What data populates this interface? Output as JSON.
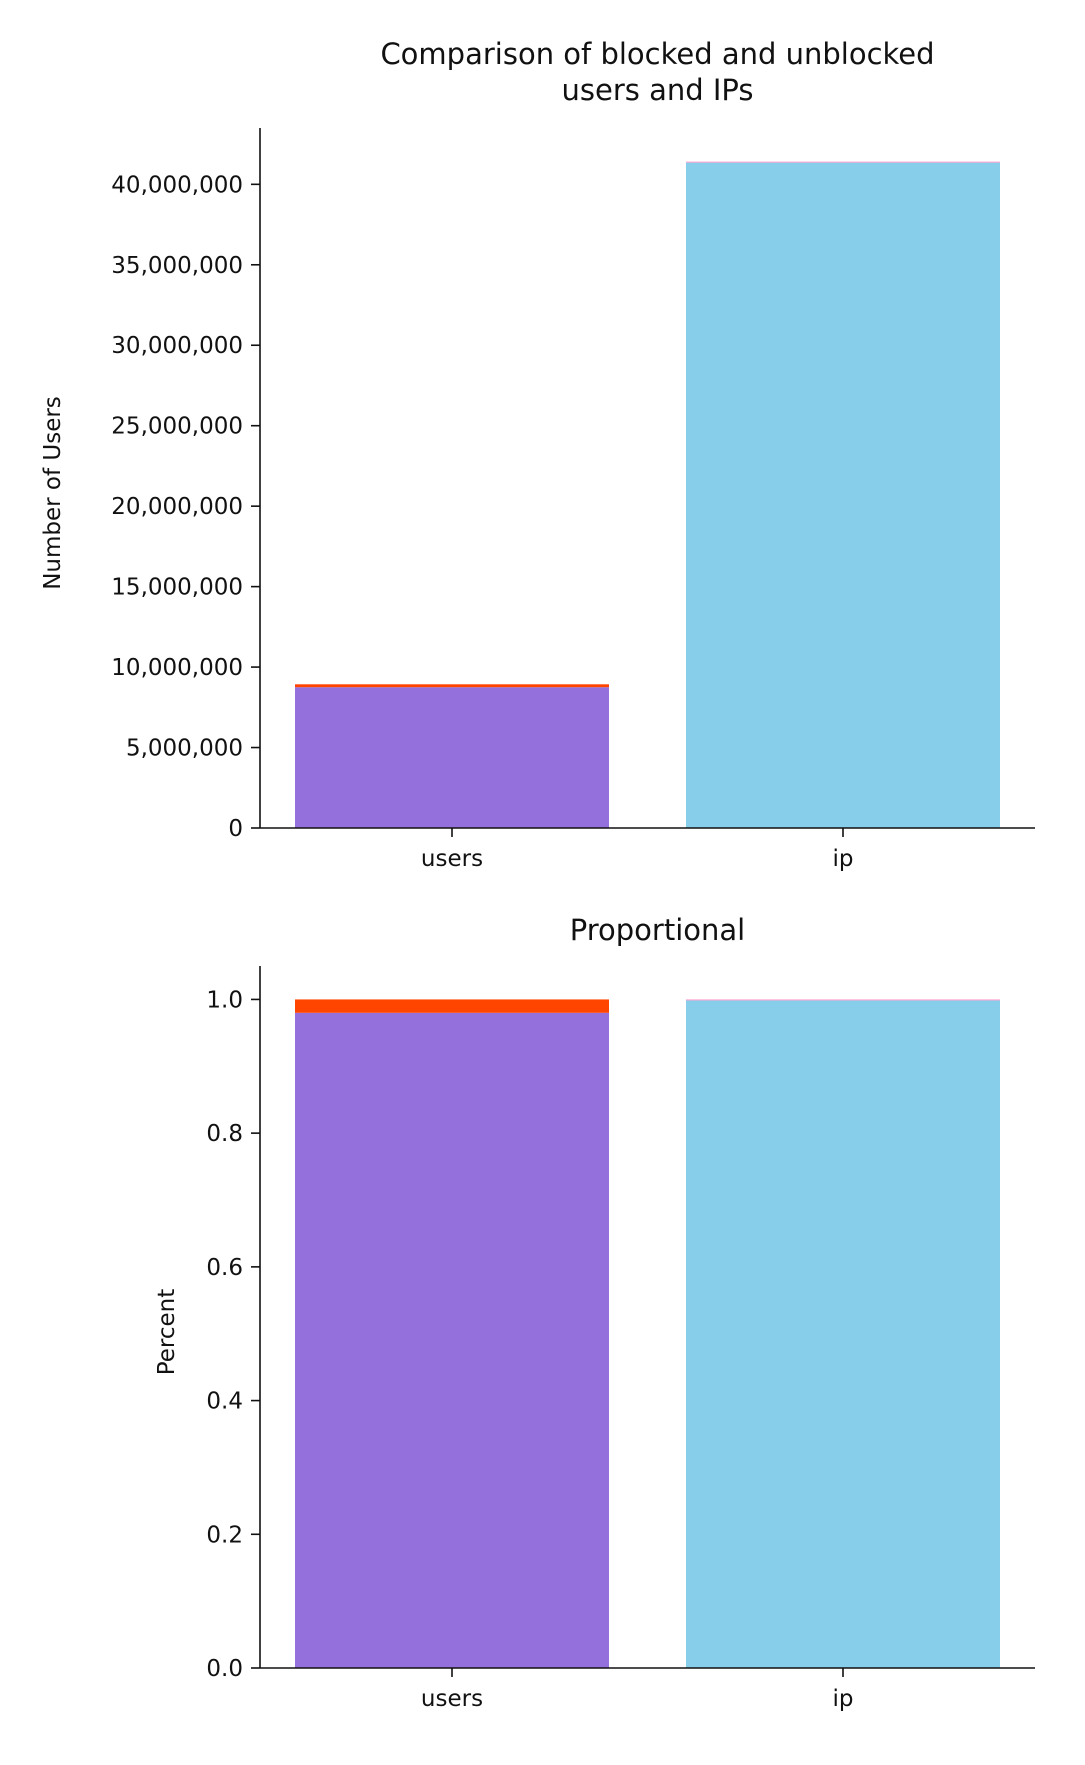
{
  "chart_data": [
    {
      "type": "bar",
      "stacked": true,
      "title_lines": [
        "Comparison of blocked and unblocked",
        "users and IPs"
      ],
      "xlabel": "",
      "ylabel": "Number of Users",
      "ylim": [
        0,
        43500000
      ],
      "yticks": [
        0,
        5000000,
        10000000,
        15000000,
        20000000,
        25000000,
        30000000,
        35000000,
        40000000
      ],
      "ytick_labels": [
        "0",
        "5,000,000",
        "10,000,000",
        "15,000,000",
        "20,000,000",
        "25,000,000",
        "30,000,000",
        "35,000,000",
        "40,000,000"
      ],
      "categories": [
        "users",
        "ip"
      ],
      "bars": [
        {
          "category": "users",
          "segments": [
            {
              "value": 8750000,
              "color": "#9370DB"
            },
            {
              "value": 180000,
              "color": "#FF4500"
            }
          ]
        },
        {
          "category": "ip",
          "segments": [
            {
              "value": 41350000,
              "color": "#87CEEB"
            },
            {
              "value": 60000,
              "color": "#FF99CC"
            }
          ]
        }
      ],
      "grid": false,
      "spines": "left-bottom"
    },
    {
      "type": "bar",
      "stacked": true,
      "title_lines": [
        "Proportional"
      ],
      "xlabel": "",
      "ylabel": "Percent",
      "ylim": [
        0,
        1.05
      ],
      "yticks": [
        0,
        0.2,
        0.4,
        0.6,
        0.8,
        1.0
      ],
      "ytick_labels": [
        "0.0",
        "0.2",
        "0.4",
        "0.6",
        "0.8",
        "1.0"
      ],
      "categories": [
        "users",
        "ip"
      ],
      "bars": [
        {
          "category": "users",
          "segments": [
            {
              "value": 0.98,
              "color": "#9370DB"
            },
            {
              "value": 0.02,
              "color": "#FF4500"
            }
          ]
        },
        {
          "category": "ip",
          "segments": [
            {
              "value": 0.9985,
              "color": "#87CEEB"
            },
            {
              "value": 0.0015,
              "color": "#FF99CC"
            }
          ]
        }
      ],
      "grid": false,
      "spines": "left-bottom"
    }
  ]
}
